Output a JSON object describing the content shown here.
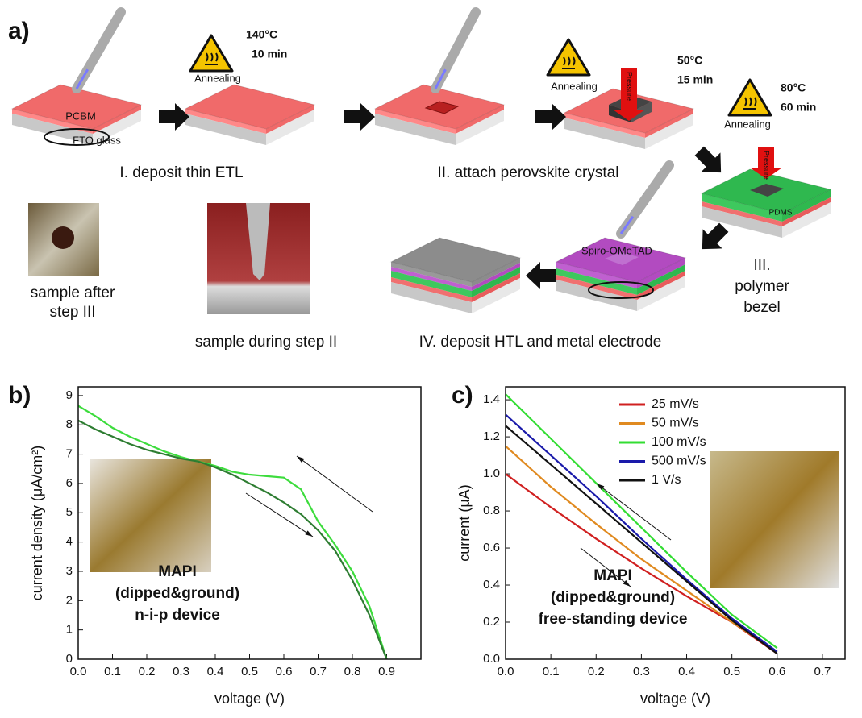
{
  "panel_a": {
    "label": "a)",
    "steps": [
      "I. deposit thin ETL",
      "II. attach perovskite crystal",
      "III.",
      "polymer",
      "bezel",
      "IV. deposit HTL and metal electrode"
    ],
    "annealing": [
      {
        "label": "Annealing",
        "temp": "140°C",
        "time": "10 min"
      },
      {
        "label": "Annealing",
        "temp": "50°C",
        "time": "15 min"
      },
      {
        "label": "Annealing",
        "temp": "80°C",
        "time": "60 min"
      }
    ],
    "layers": [
      "PCBM",
      "FTO glass",
      "PDMS",
      "Spiro-OMeTAD"
    ],
    "pressure": "Pressure",
    "photos": [
      "sample after",
      "step III",
      "sample during step II"
    ]
  },
  "chart_data": [
    {
      "type": "line",
      "label": "b)",
      "xlabel": "voltage (V)",
      "ylabel": "current density (μA/cm²)",
      "annotations": [
        "MAPI",
        "(dipped&ground)",
        "n-i-p device"
      ],
      "x": [
        0,
        0.05,
        0.1,
        0.15,
        0.2,
        0.25,
        0.3,
        0.35,
        0.4,
        0.45,
        0.5,
        0.55,
        0.6,
        0.65,
        0.7,
        0.75,
        0.8,
        0.85,
        0.9
      ],
      "series": [
        {
          "color": "#3ddc3d",
          "values": [
            8.65,
            8.3,
            7.9,
            7.6,
            7.35,
            7.1,
            6.9,
            6.75,
            6.6,
            6.4,
            6.3,
            6.25,
            6.2,
            5.8,
            4.7,
            3.9,
            3.0,
            1.8,
            0
          ]
        },
        {
          "color": "#2e7d32",
          "values": [
            8.15,
            7.85,
            7.6,
            7.35,
            7.15,
            7.0,
            6.85,
            6.75,
            6.55,
            6.3,
            6.0,
            5.7,
            5.35,
            4.95,
            4.4,
            3.7,
            2.7,
            1.5,
            0
          ]
        }
      ],
      "xlim": [
        0,
        1.0
      ],
      "ylim": [
        0,
        9.3
      ],
      "xticks": [
        {
          "value": 0,
          "label": "0.0"
        },
        0.1,
        0.2,
        0.3,
        0.4,
        0.5,
        0.6,
        0.7,
        0.8,
        0.9
      ],
      "yticks": [
        0,
        1,
        2,
        3,
        4,
        5,
        6,
        7,
        8,
        9
      ]
    },
    {
      "type": "line",
      "label": "c)",
      "xlabel": "voltage (V)",
      "ylabel": "current (μA)",
      "annotations": [
        "MAPI",
        "(dipped&ground)",
        "free-standing device"
      ],
      "x": [
        0,
        0.1,
        0.2,
        0.3,
        0.4,
        0.5,
        0.6
      ],
      "series": [
        {
          "name": "25 mV/s",
          "color": "#d02020",
          "values": [
            1.0,
            0.82,
            0.65,
            0.49,
            0.34,
            0.2,
            0.03
          ]
        },
        {
          "name": "50 mV/s",
          "color": "#e08a20",
          "values": [
            1.15,
            0.93,
            0.73,
            0.54,
            0.37,
            0.2,
            0.04
          ]
        },
        {
          "name": "100 mV/s",
          "color": "#33dd33",
          "values": [
            1.43,
            1.19,
            0.95,
            0.71,
            0.47,
            0.24,
            0.06
          ]
        },
        {
          "name": "500 mV/s",
          "color": "#1a1aaa",
          "values": [
            1.32,
            1.1,
            0.88,
            0.65,
            0.43,
            0.22,
            0.04
          ]
        },
        {
          "name": "1 V/s",
          "color": "#111111",
          "values": [
            1.26,
            1.05,
            0.84,
            0.63,
            0.42,
            0.21,
            0.03
          ]
        }
      ],
      "xlim": [
        0,
        0.75
      ],
      "ylim": [
        0,
        1.47
      ],
      "xticks": [
        {
          "value": 0,
          "label": "0.0"
        },
        0.1,
        0.2,
        0.3,
        0.4,
        0.5,
        0.6,
        0.7
      ],
      "yticks": [
        {
          "value": 0,
          "label": "0.0"
        },
        0.2,
        0.4,
        0.6,
        0.8,
        {
          "value": 1,
          "label": "1.0"
        },
        1.2,
        1.4
      ]
    }
  ]
}
